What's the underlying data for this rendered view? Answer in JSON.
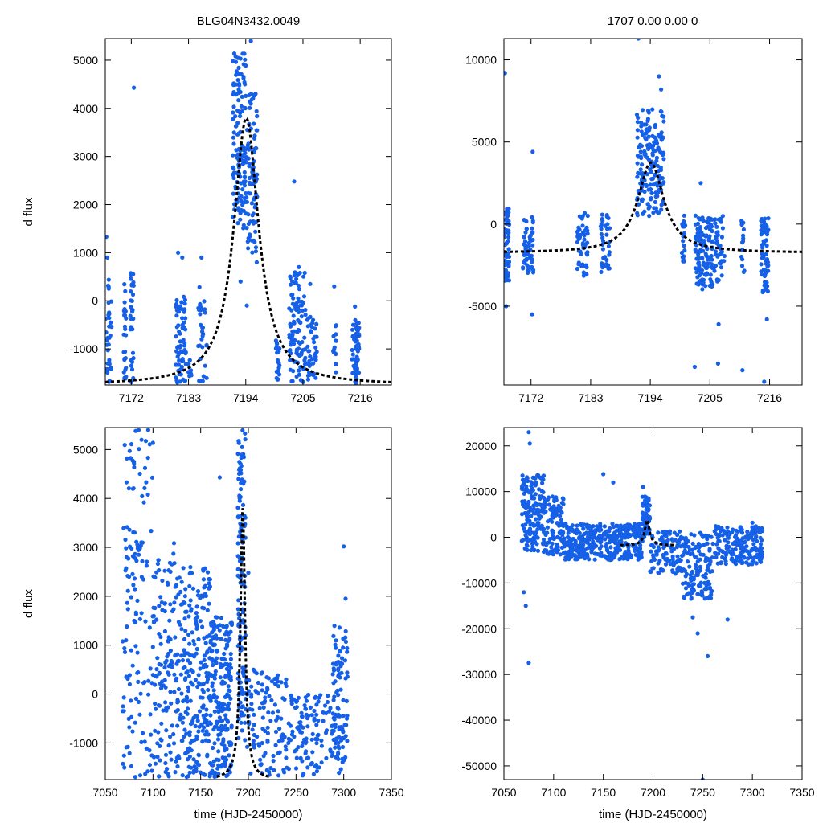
{
  "header": {
    "title_left": "BLG04N3432.0049",
    "title_right": "1707  0.00  0.00  0"
  },
  "colors": {
    "points": "#1560e6",
    "model": "#000000"
  },
  "chart_data": [
    {
      "id": "top-left",
      "type": "scatter",
      "title": "BLG04N3432.0049",
      "xlabel": "",
      "ylabel": "d flux",
      "xlim": [
        7167,
        7222
      ],
      "ylim": [
        -1750,
        5450
      ],
      "xticks": [
        7172,
        7183,
        7194,
        7205,
        7216
      ],
      "yticks": [
        -1000,
        0,
        1000,
        2000,
        3000,
        4000,
        5000
      ],
      "model": {
        "t0": 7194.1,
        "amp": 5550,
        "base": -1750,
        "tau": 2.9
      },
      "clusters": [
        {
          "x": [
            7167,
            7168.2
          ],
          "n": 35,
          "ymin": -1700,
          "ymax": 500
        },
        {
          "x": [
            7170.5,
            7171
          ],
          "n": 25,
          "ymin": -1700,
          "ymax": 400
        },
        {
          "x": [
            7171.8,
            7172.5
          ],
          "n": 30,
          "ymin": -1700,
          "ymax": 600
        },
        {
          "x": [
            7180.5,
            7182.5
          ],
          "n": 70,
          "ymin": -1700,
          "ymax": 100
        },
        {
          "x": [
            7183,
            7183.6
          ],
          "n": 10,
          "ymin": -1600,
          "ymax": -1200
        },
        {
          "x": [
            7184.8,
            7186.5
          ],
          "n": 30,
          "ymin": -1700,
          "ymax": 300
        },
        {
          "x": [
            7191.5,
            7194
          ],
          "n": 130,
          "ymin": 1500,
          "ymax": 5200
        },
        {
          "x": [
            7194,
            7196.2
          ],
          "n": 90,
          "ymin": 1000,
          "ymax": 4400
        },
        {
          "x": [
            7199.8,
            7200.5
          ],
          "n": 20,
          "ymin": -1700,
          "ymax": -800
        },
        {
          "x": [
            7202.3,
            7205.5
          ],
          "n": 110,
          "ymin": -1700,
          "ymax": 600
        },
        {
          "x": [
            7205.8,
            7207.8
          ],
          "n": 40,
          "ymin": -1700,
          "ymax": -300
        },
        {
          "x": [
            7210.8,
            7211.4
          ],
          "n": 15,
          "ymin": -1700,
          "ymax": -500
        },
        {
          "x": [
            7214.4,
            7215.8
          ],
          "n": 60,
          "ymin": -1750,
          "ymax": -400
        }
      ],
      "outliers": [
        [
          7167.2,
          1330
        ],
        [
          7167.4,
          900
        ],
        [
          7172.5,
          4430
        ],
        [
          7181,
          1000
        ],
        [
          7181.8,
          900
        ],
        [
          7185.5,
          900
        ],
        [
          7193,
          400
        ],
        [
          7194.2,
          -100
        ],
        [
          7195,
          5400
        ],
        [
          7196.1,
          800
        ],
        [
          7203.3,
          2480
        ],
        [
          7204.2,
          700
        ],
        [
          7206.4,
          350
        ],
        [
          7211,
          300
        ],
        [
          7215,
          -120
        ]
      ]
    },
    {
      "id": "top-right",
      "type": "scatter",
      "title": "1707  0.00  0.00  0",
      "xlabel": "",
      "ylabel": "",
      "xlim": [
        7167,
        7222
      ],
      "ylim": [
        -9800,
        11300
      ],
      "xticks": [
        7172,
        7183,
        7194,
        7205,
        7216
      ],
      "yticks": [
        -5000,
        0,
        5000,
        10000
      ],
      "model": {
        "t0": 7194.1,
        "amp": 5500,
        "base": -1750,
        "tau": 2.9
      },
      "clusters": [
        {
          "x": [
            7167,
            7168
          ],
          "n": 60,
          "ymin": -3500,
          "ymax": 1000
        },
        {
          "x": [
            7170.5,
            7172.5
          ],
          "n": 55,
          "ymin": -3000,
          "ymax": 500
        },
        {
          "x": [
            7180.5,
            7182.5
          ],
          "n": 55,
          "ymin": -3200,
          "ymax": 700
        },
        {
          "x": [
            7184.8,
            7186.5
          ],
          "n": 35,
          "ymin": -3000,
          "ymax": 600
        },
        {
          "x": [
            7191.5,
            7196.5
          ],
          "n": 180,
          "ymin": 500,
          "ymax": 7000
        },
        {
          "x": [
            7199.8,
            7200.5
          ],
          "n": 20,
          "ymin": -2500,
          "ymax": 600
        },
        {
          "x": [
            7202.3,
            7205.5
          ],
          "n": 130,
          "ymin": -4000,
          "ymax": 600
        },
        {
          "x": [
            7205.8,
            7207.8
          ],
          "n": 40,
          "ymin": -3500,
          "ymax": 500
        },
        {
          "x": [
            7210.8,
            7211.4
          ],
          "n": 15,
          "ymin": -3000,
          "ymax": 400
        },
        {
          "x": [
            7214.4,
            7215.8
          ],
          "n": 65,
          "ymin": -4200,
          "ymax": 400
        }
      ],
      "outliers": [
        [
          7167.2,
          9200
        ],
        [
          7172.3,
          4400
        ],
        [
          7167.4,
          -5000
        ],
        [
          7172.2,
          -5500
        ],
        [
          7191.8,
          11300
        ],
        [
          7195.6,
          9000
        ],
        [
          7196,
          8200
        ],
        [
          7203.3,
          2500
        ],
        [
          7202.2,
          -8700
        ],
        [
          7206.6,
          -6100
        ],
        [
          7206.5,
          -8500
        ],
        [
          7211,
          -8900
        ],
        [
          7215,
          -9600
        ],
        [
          7215.5,
          -5800
        ]
      ]
    },
    {
      "id": "bottom-left",
      "type": "scatter",
      "title": "",
      "xlabel": "time (HJD-2450000)",
      "ylabel": "d flux",
      "xlim": [
        7050,
        7350
      ],
      "ylim": [
        -1750,
        5450
      ],
      "xticks": [
        7050,
        7100,
        7150,
        7200,
        7250,
        7300,
        7350
      ],
      "yticks": [
        -1000,
        0,
        1000,
        2000,
        3000,
        4000,
        5000
      ],
      "model": {
        "t0": 7194.1,
        "amp": 5550,
        "base": -1750,
        "tau": 2.9
      },
      "clusters": [
        {
          "x": [
            7068,
            7100
          ],
          "n": 140,
          "ymin": -1700,
          "ymax": 5400
        },
        {
          "x": [
            7100,
            7130
          ],
          "n": 150,
          "ymin": -1700,
          "ymax": 3100
        },
        {
          "x": [
            7130,
            7160
          ],
          "n": 220,
          "ymin": -1700,
          "ymax": 2600
        },
        {
          "x": [
            7160,
            7183
          ],
          "n": 200,
          "ymin": -1700,
          "ymax": 1600
        },
        {
          "x": [
            7189,
            7197
          ],
          "n": 130,
          "ymin": -1000,
          "ymax": 5400
        },
        {
          "x": [
            7197,
            7240
          ],
          "n": 120,
          "ymin": -1700,
          "ymax": 500
        },
        {
          "x": [
            7240,
            7300
          ],
          "n": 140,
          "ymin": -1700,
          "ymax": 0
        },
        {
          "x": [
            7288,
            7304
          ],
          "n": 80,
          "ymin": -1400,
          "ymax": 1400
        }
      ],
      "outliers": [
        [
          7085,
          5400
        ],
        [
          7095,
          5400
        ],
        [
          7088,
          5200
        ],
        [
          7170,
          4430
        ],
        [
          7200,
          2480
        ],
        [
          7300,
          3020
        ],
        [
          7302,
          1950
        ],
        [
          7068,
          -350
        ]
      ]
    },
    {
      "id": "bottom-right",
      "type": "scatter",
      "title": "",
      "xlabel": "time (HJD-2450000)",
      "ylabel": "",
      "xlim": [
        7050,
        7350
      ],
      "ylim": [
        -53000,
        24000
      ],
      "xticks": [
        7050,
        7100,
        7150,
        7200,
        7250,
        7300,
        7350
      ],
      "yticks": [
        -50000,
        -40000,
        -30000,
        -20000,
        -10000,
        0,
        10000,
        20000
      ],
      "model": {
        "t0": 7194.1,
        "amp": 5500,
        "base": -1750,
        "tau": 2.9
      },
      "clusters": [
        {
          "x": [
            7068,
            7090
          ],
          "n": 160,
          "ymin": -3000,
          "ymax": 14000
        },
        {
          "x": [
            7090,
            7110
          ],
          "n": 110,
          "ymin": -4000,
          "ymax": 9000
        },
        {
          "x": [
            7110,
            7190
          ],
          "n": 380,
          "ymin": -5000,
          "ymax": 3000
        },
        {
          "x": [
            7189,
            7197
          ],
          "n": 60,
          "ymin": 0,
          "ymax": 9000
        },
        {
          "x": [
            7197,
            7230
          ],
          "n": 100,
          "ymin": -8000,
          "ymax": 1500
        },
        {
          "x": [
            7230,
            7260
          ],
          "n": 140,
          "ymin": -14000,
          "ymax": 1000
        },
        {
          "x": [
            7260,
            7310
          ],
          "n": 190,
          "ymin": -6000,
          "ymax": 2500
        }
      ],
      "outliers": [
        [
          7075,
          23000
        ],
        [
          7076,
          20500
        ],
        [
          7075,
          -27500
        ],
        [
          7072,
          -15000
        ],
        [
          7070,
          -12000
        ],
        [
          7150,
          13800
        ],
        [
          7160,
          12000
        ],
        [
          7245,
          -21000
        ],
        [
          7255,
          -26000
        ],
        [
          7240,
          -17500
        ],
        [
          7250,
          -53000
        ],
        [
          7190,
          11000
        ],
        [
          7275,
          -18000
        ],
        [
          7300,
          3200
        ]
      ]
    }
  ]
}
